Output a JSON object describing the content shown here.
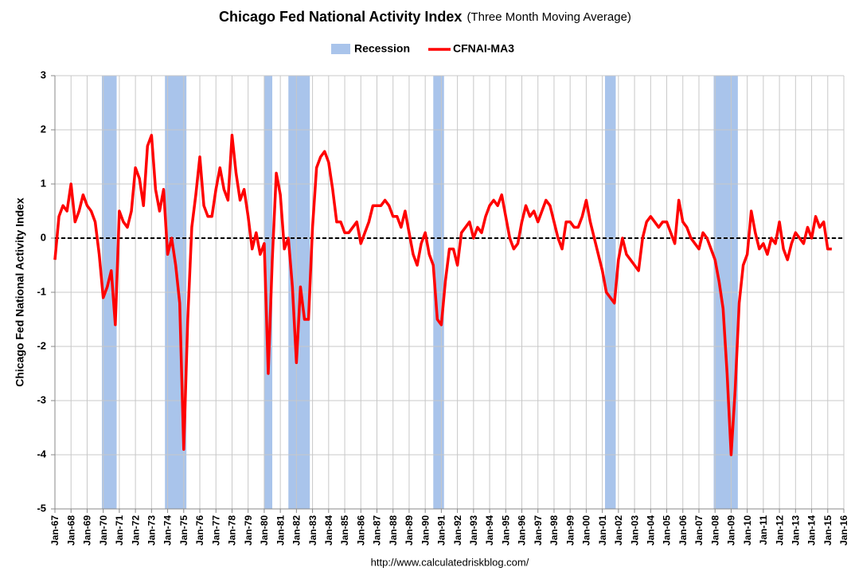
{
  "chart_data": {
    "type": "line",
    "title": "Chicago Fed National Activity Index",
    "subtitle": "(Three Month Moving Average)",
    "y_label": "Chicago Fed National Activity Index",
    "source": "http://www.calculatedriskblog.com/",
    "ylim": [
      -5,
      3
    ],
    "yticks": [
      -5,
      -4,
      -3,
      -2,
      -1,
      0,
      1,
      2,
      3
    ],
    "xlim": [
      "Jan-67",
      "Jan-16"
    ],
    "xticks": [
      "Jan-67",
      "Jan-68",
      "Jan-69",
      "Jan-70",
      "Jan-71",
      "Jan-72",
      "Jan-73",
      "Jan-74",
      "Jan-75",
      "Jan-76",
      "Jan-77",
      "Jan-78",
      "Jan-79",
      "Jan-80",
      "Jan-81",
      "Jan-82",
      "Jan-83",
      "Jan-84",
      "Jan-85",
      "Jan-86",
      "Jan-87",
      "Jan-88",
      "Jan-89",
      "Jan-90",
      "Jan-91",
      "Jan-92",
      "Jan-93",
      "Jan-94",
      "Jan-95",
      "Jan-96",
      "Jan-97",
      "Jan-98",
      "Jan-99",
      "Jan-00",
      "Jan-01",
      "Jan-02",
      "Jan-03",
      "Jan-04",
      "Jan-05",
      "Jan-06",
      "Jan-07",
      "Jan-08",
      "Jan-09",
      "Jan-10",
      "Jan-11",
      "Jan-12",
      "Jan-13",
      "Jan-14",
      "Jan-15",
      "Jan-16"
    ],
    "grid": true,
    "recession": {
      "name": "Recession",
      "color": "#a9c4eb",
      "periods": [
        {
          "start": "Dec-69",
          "end": "Nov-70"
        },
        {
          "start": "Nov-73",
          "end": "Mar-75"
        },
        {
          "start": "Jan-80",
          "end": "Jul-80"
        },
        {
          "start": "Jul-81",
          "end": "Nov-82"
        },
        {
          "start": "Jul-90",
          "end": "Mar-91"
        },
        {
          "start": "Mar-01",
          "end": "Nov-01"
        },
        {
          "start": "Dec-07",
          "end": "Jun-09"
        }
      ]
    },
    "series": [
      {
        "name": "CFNAI-MA3",
        "color": "#ff0000",
        "x": [
          "Jan-67",
          "Apr-67",
          "Jul-67",
          "Oct-67",
          "Jan-68",
          "Apr-68",
          "Jul-68",
          "Oct-68",
          "Jan-69",
          "Apr-69",
          "Jul-69",
          "Oct-69",
          "Jan-70",
          "Apr-70",
          "Jul-70",
          "Oct-70",
          "Jan-71",
          "Apr-71",
          "Jul-71",
          "Oct-71",
          "Jan-72",
          "Apr-72",
          "Jul-72",
          "Oct-72",
          "Jan-73",
          "Apr-73",
          "Jul-73",
          "Oct-73",
          "Jan-74",
          "Apr-74",
          "Jul-74",
          "Oct-74",
          "Jan-75",
          "Apr-75",
          "Jul-75",
          "Oct-75",
          "Jan-76",
          "Apr-76",
          "Jul-76",
          "Oct-76",
          "Jan-77",
          "Apr-77",
          "Jul-77",
          "Oct-77",
          "Jan-78",
          "Apr-78",
          "Jul-78",
          "Oct-78",
          "Jan-79",
          "Apr-79",
          "Jul-79",
          "Oct-79",
          "Jan-80",
          "Apr-80",
          "Jul-80",
          "Oct-80",
          "Jan-81",
          "Apr-81",
          "Jul-81",
          "Oct-81",
          "Jan-82",
          "Apr-82",
          "Jul-82",
          "Oct-82",
          "Jan-83",
          "Apr-83",
          "Jul-83",
          "Oct-83",
          "Jan-84",
          "Apr-84",
          "Jul-84",
          "Oct-84",
          "Jan-85",
          "Apr-85",
          "Jul-85",
          "Oct-85",
          "Jan-86",
          "Apr-86",
          "Jul-86",
          "Oct-86",
          "Jan-87",
          "Apr-87",
          "Jul-87",
          "Oct-87",
          "Jan-88",
          "Apr-88",
          "Jul-88",
          "Oct-88",
          "Jan-89",
          "Apr-89",
          "Jul-89",
          "Oct-89",
          "Jan-90",
          "Apr-90",
          "Jul-90",
          "Oct-90",
          "Jan-91",
          "Apr-91",
          "Jul-91",
          "Oct-91",
          "Jan-92",
          "Apr-92",
          "Jul-92",
          "Oct-92",
          "Jan-93",
          "Apr-93",
          "Jul-93",
          "Oct-93",
          "Jan-94",
          "Apr-94",
          "Jul-94",
          "Oct-94",
          "Jan-95",
          "Apr-95",
          "Jul-95",
          "Oct-95",
          "Jan-96",
          "Apr-96",
          "Jul-96",
          "Oct-96",
          "Jan-97",
          "Apr-97",
          "Jul-97",
          "Oct-97",
          "Jan-98",
          "Apr-98",
          "Jul-98",
          "Oct-98",
          "Jan-99",
          "Apr-99",
          "Jul-99",
          "Oct-99",
          "Jan-00",
          "Apr-00",
          "Jul-00",
          "Oct-00",
          "Jan-01",
          "Apr-01",
          "Jul-01",
          "Oct-01",
          "Jan-02",
          "Apr-02",
          "Jul-02",
          "Oct-02",
          "Jan-03",
          "Apr-03",
          "Jul-03",
          "Oct-03",
          "Jan-04",
          "Apr-04",
          "Jul-04",
          "Oct-04",
          "Jan-05",
          "Apr-05",
          "Jul-05",
          "Oct-05",
          "Jan-06",
          "Apr-06",
          "Jul-06",
          "Oct-06",
          "Jan-07",
          "Apr-07",
          "Jul-07",
          "Oct-07",
          "Jan-08",
          "Apr-08",
          "Jul-08",
          "Oct-08",
          "Jan-09",
          "Apr-09",
          "Jul-09",
          "Oct-09",
          "Jan-10",
          "Apr-10",
          "Jul-10",
          "Oct-10",
          "Jan-11",
          "Apr-11",
          "Jul-11",
          "Oct-11",
          "Jan-12",
          "Apr-12",
          "Jul-12",
          "Oct-12",
          "Jan-13",
          "Apr-13",
          "Jul-13",
          "Oct-13",
          "Jan-14",
          "Apr-14",
          "Jul-14",
          "Oct-14",
          "Jan-15",
          "Apr-15"
        ],
        "values": [
          -0.4,
          0.4,
          0.6,
          0.5,
          1.0,
          0.3,
          0.5,
          0.8,
          0.6,
          0.5,
          0.3,
          -0.3,
          -1.1,
          -0.9,
          -0.6,
          -1.6,
          0.5,
          0.3,
          0.2,
          0.5,
          1.3,
          1.1,
          0.6,
          1.7,
          1.9,
          0.9,
          0.5,
          0.9,
          -0.3,
          0.0,
          -0.5,
          -1.2,
          -3.9,
          -1.5,
          0.2,
          0.8,
          1.5,
          0.6,
          0.4,
          0.4,
          0.9,
          1.3,
          0.9,
          0.7,
          1.9,
          1.2,
          0.7,
          0.9,
          0.4,
          -0.2,
          0.1,
          -0.3,
          -0.1,
          -2.5,
          -0.4,
          1.2,
          0.8,
          -0.2,
          0.0,
          -0.9,
          -2.3,
          -0.9,
          -1.5,
          -1.5,
          0.2,
          1.3,
          1.5,
          1.6,
          1.4,
          0.9,
          0.3,
          0.3,
          0.1,
          0.1,
          0.2,
          0.3,
          -0.1,
          0.1,
          0.3,
          0.6,
          0.6,
          0.6,
          0.7,
          0.6,
          0.4,
          0.4,
          0.2,
          0.5,
          0.1,
          -0.3,
          -0.5,
          -0.1,
          0.1,
          -0.3,
          -0.5,
          -1.5,
          -1.6,
          -0.8,
          -0.2,
          -0.2,
          -0.5,
          0.1,
          0.2,
          0.3,
          0.0,
          0.2,
          0.1,
          0.4,
          0.6,
          0.7,
          0.6,
          0.8,
          0.4,
          0.0,
          -0.2,
          -0.1,
          0.3,
          0.6,
          0.4,
          0.5,
          0.3,
          0.5,
          0.7,
          0.6,
          0.3,
          0.0,
          -0.2,
          0.3,
          0.3,
          0.2,
          0.2,
          0.4,
          0.7,
          0.3,
          0.0,
          -0.3,
          -0.6,
          -1.0,
          -1.1,
          -1.2,
          -0.4,
          0.0,
          -0.3,
          -0.4,
          -0.5,
          -0.6,
          0.0,
          0.3,
          0.4,
          0.3,
          0.2,
          0.3,
          0.3,
          0.1,
          -0.1,
          0.7,
          0.3,
          0.2,
          0.0,
          -0.1,
          -0.2,
          0.1,
          0.0,
          -0.2,
          -0.4,
          -0.8,
          -1.3,
          -2.5,
          -4.0,
          -2.8,
          -1.2,
          -0.5,
          -0.3,
          0.5,
          0.1,
          -0.2,
          -0.1,
          -0.3,
          0.0,
          -0.1,
          0.3,
          -0.2,
          -0.4,
          -0.1,
          0.1,
          0.0,
          -0.1,
          0.2,
          0.0,
          0.4,
          0.2,
          0.3,
          -0.2,
          -0.2
        ]
      }
    ]
  }
}
